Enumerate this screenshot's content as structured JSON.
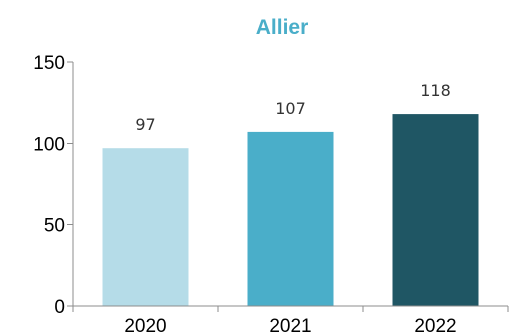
{
  "chart_data": {
    "type": "bar",
    "title": "Allier",
    "categories": [
      "2020",
      "2021",
      "2022"
    ],
    "values": [
      97,
      107,
      118
    ],
    "data_labels": [
      "97",
      "107",
      "118"
    ],
    "colors": [
      "#b5dce8",
      "#4aaec9",
      "#1f5664"
    ],
    "title_color": "#4aaec9",
    "xlabel": "",
    "ylabel": "",
    "ylim": [
      0,
      150
    ],
    "yticks": [
      0,
      50,
      100,
      150
    ],
    "ytick_labels": [
      "0",
      "50",
      "100",
      "150"
    ],
    "grid": false,
    "legend": "none"
  }
}
